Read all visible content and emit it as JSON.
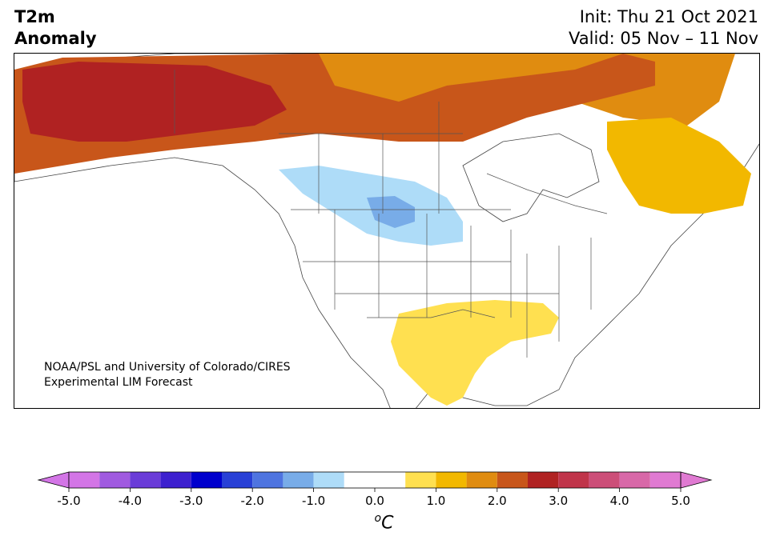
{
  "header": {
    "title_line1": "T2m",
    "title_line2": "Anomaly",
    "init": "Init: Thu 21 Oct 2021",
    "valid": "Valid: 05 Nov – 11 Nov"
  },
  "credit": {
    "line1": "NOAA/PSL and University of Colorado/CIRES",
    "line2": "Experimental LIM Forecast"
  },
  "colorbar": {
    "unit_label_prefix": "o",
    "unit_label_main": "C",
    "ticks": [
      "-5.0",
      "-4.0",
      "-3.0",
      "-2.0",
      "-1.0",
      "0.0",
      "1.0",
      "2.0",
      "3.0",
      "4.0",
      "5.0"
    ],
    "bounds": [
      -5.0,
      -4.5,
      -4.0,
      -3.5,
      -3.0,
      -2.5,
      -2.0,
      -1.5,
      -1.0,
      -0.5,
      0.5,
      1.0,
      1.5,
      2.0,
      2.5,
      3.0,
      3.5,
      4.0,
      4.5,
      5.0
    ],
    "colors": [
      "#d375e6",
      "#a05ae0",
      "#6a3cd8",
      "#3d20cf",
      "#0000cd",
      "#2840d6",
      "#4e74e0",
      "#78ace8",
      "#aedcf8",
      "#ffffff",
      "#ffe050",
      "#f2b800",
      "#e08c10",
      "#c8561a",
      "#b02222",
      "#c0344a",
      "#cc4e78",
      "#d868a8",
      "#e07ad2"
    ],
    "under_color": "#d375e6",
    "over_color": "#e07ad2"
  },
  "map": {
    "region": "North America",
    "anomaly_areas": [
      {
        "name": "alaska-yukon-warm",
        "color": "#b02222"
      },
      {
        "name": "canada-north-warm",
        "color": "#c8561a"
      },
      {
        "name": "arctic-islands-warm",
        "color": "#e08c10"
      },
      {
        "name": "labrador-warm",
        "color": "#f2b800"
      },
      {
        "name": "prairies-cool",
        "color": "#aedcf8"
      },
      {
        "name": "prairies-core-cool",
        "color": "#78ace8"
      },
      {
        "name": "gulf-south-warm",
        "color": "#ffe050"
      }
    ]
  }
}
